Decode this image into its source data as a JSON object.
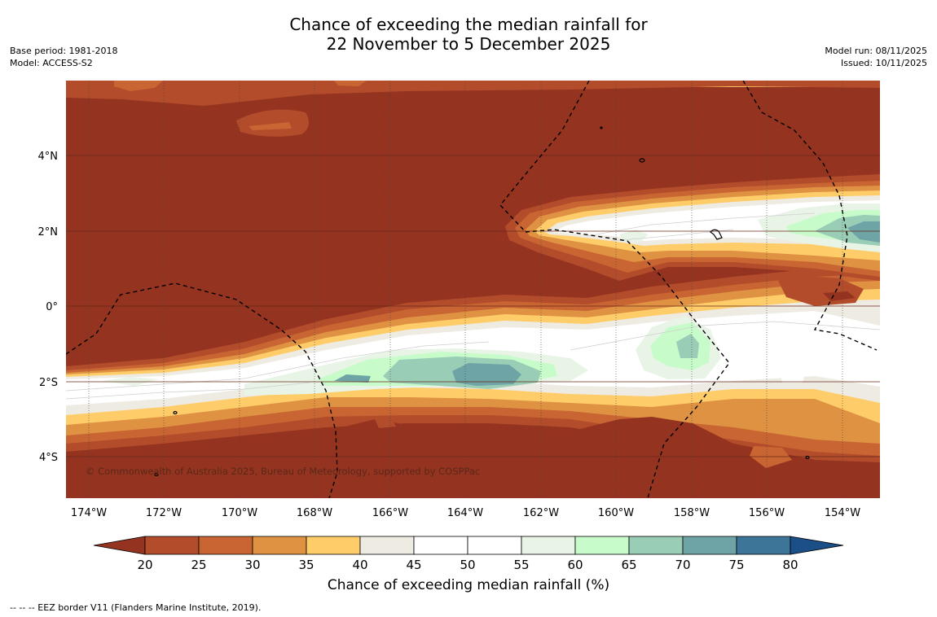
{
  "title": {
    "line1": "Chance of exceeding the median rainfall for",
    "line2": "22 November to 5 December 2025"
  },
  "meta_left": {
    "base_period": "Base period: 1981-2018",
    "model": "Model: ACCESS-S2"
  },
  "meta_right": {
    "model_run": "Model run: 08/11/2025",
    "issued": "Issued: 10/11/2025"
  },
  "map": {
    "lon_labels": [
      "174°W",
      "172°W",
      "170°W",
      "168°W",
      "166°W",
      "164°W",
      "162°W",
      "160°W",
      "158°W",
      "156°W",
      "154°W"
    ],
    "lat_labels": [
      "4°N",
      "2°N",
      "0°",
      "2°S",
      "4°S"
    ],
    "copyright": "© Commonwealth of Australia 2025, Bureau of Meteorology, supported by COSPPac",
    "colors": {
      "c20": "#953321",
      "c25": "#b24c2b",
      "c30": "#c96532",
      "c35": "#e09243",
      "c40": "#fecd6a",
      "c45": "#eeebe3",
      "c50": "#ffffff",
      "c60": "#e8f4e6",
      "c65": "#c8fbca",
      "c70": "#99cdb6",
      "c75": "#6ea4a5",
      "c80": "#3c7597"
    }
  },
  "legend": {
    "ticks": [
      "20",
      "25",
      "30",
      "35",
      "40",
      "45",
      "50",
      "55",
      "60",
      "65",
      "70",
      "75",
      "80"
    ],
    "colors": [
      "#953321",
      "#b24c2b",
      "#c96532",
      "#e09243",
      "#fecd6a",
      "#eeebe3",
      "#ffffff",
      "#ffffff",
      "#e8f4e6",
      "#c8fbca",
      "#99cdb6",
      "#6ea4a5",
      "#3c7597",
      "#1c4e88"
    ],
    "label": "Chance of exceeding median rainfall (%)"
  },
  "footnote": "--  --  -- EEZ border V11 (Flanders Marine Institute, 2019)."
}
